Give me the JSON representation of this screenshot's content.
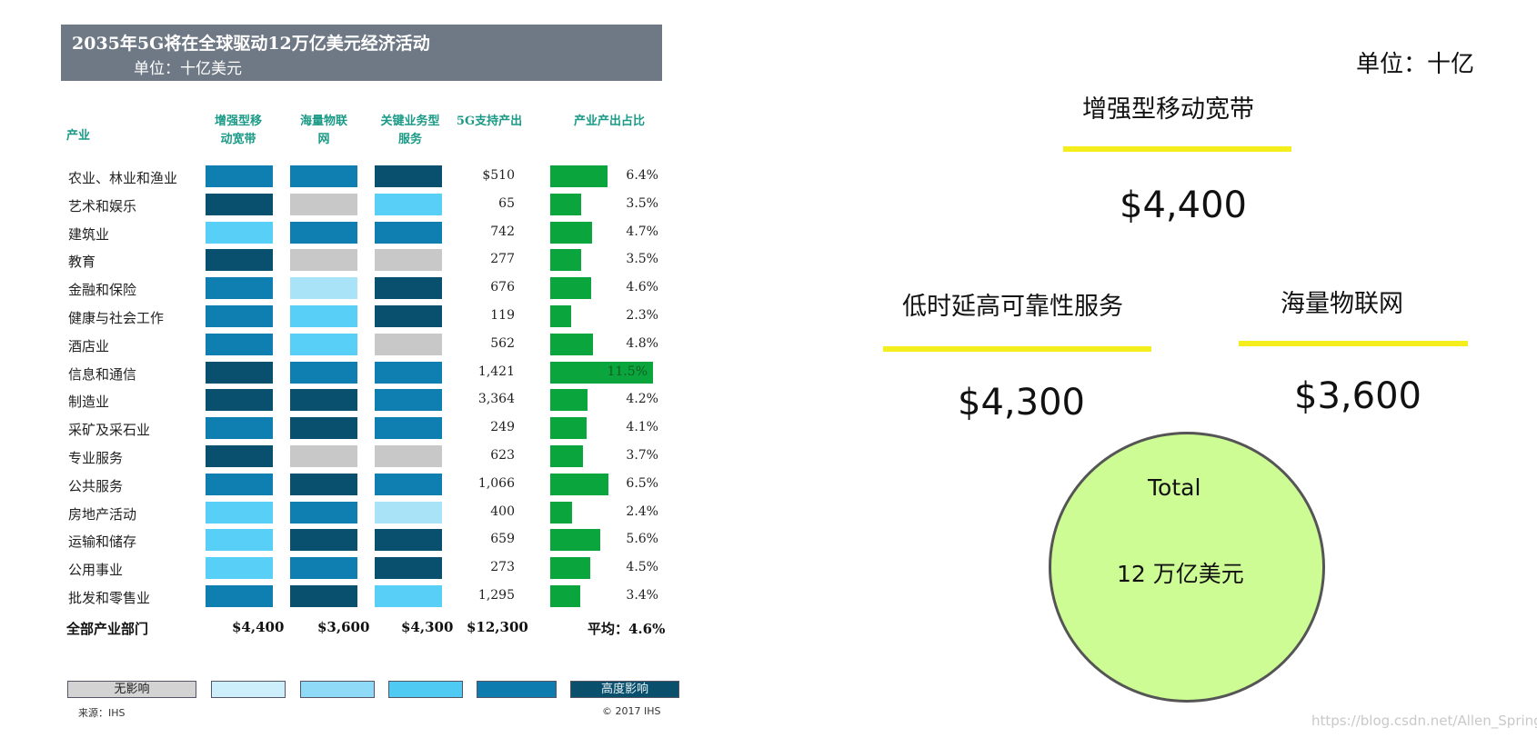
{
  "table": {
    "title": "2035年5G将在全球驱动12万亿美元经济活动",
    "unit": "单位：十亿美元",
    "headers": {
      "industry": "产业",
      "embb": [
        "增强型移",
        "动宽带"
      ],
      "iot": [
        "海量物联",
        "网"
      ],
      "critical": [
        "关键业务型",
        "服务"
      ],
      "output": "5G支持产出",
      "share": "产业产出占比"
    },
    "total_label": "全部产业部门",
    "total_embb": "$4,400",
    "total_iot": "$3,600",
    "total_critical": "$4,300",
    "total_output": "$12,300",
    "total_share": "平均：4.6%",
    "legend": [
      "无影响",
      "",
      "",
      "",
      "",
      "高度影响"
    ],
    "source": "来源：IHS",
    "copyright": "© 2017 IHS"
  },
  "chart_data": {
    "type": "table",
    "title": "2035年5G将在全球驱动12万亿美元经济活动",
    "impact_scale_colors": [
      "#c8c8c8",
      "#a8e3f8",
      "#58cff6",
      "#0e7fb0",
      "#09506e"
    ],
    "share_bar_color": "#0aa53c",
    "rows": [
      {
        "industry": "农业、林业和渔业",
        "embb": 3,
        "iot": 3,
        "critical": 4,
        "output": "$510",
        "share": "6.4%",
        "share_value": 6.4
      },
      {
        "industry": "艺术和娱乐",
        "embb": 4,
        "iot": 0,
        "critical": 2,
        "output": "65",
        "share": "3.5%",
        "share_value": 3.5
      },
      {
        "industry": "建筑业",
        "embb": 2,
        "iot": 3,
        "critical": 3,
        "output": "742",
        "share": "4.7%",
        "share_value": 4.7
      },
      {
        "industry": "教育",
        "embb": 4,
        "iot": 0,
        "critical": 0,
        "output": "277",
        "share": "3.5%",
        "share_value": 3.5
      },
      {
        "industry": "金融和保险",
        "embb": 3,
        "iot": 1,
        "critical": 4,
        "output": "676",
        "share": "4.6%",
        "share_value": 4.6
      },
      {
        "industry": "健康与社会工作",
        "embb": 3,
        "iot": 2,
        "critical": 4,
        "output": "119",
        "share": "2.3%",
        "share_value": 2.3
      },
      {
        "industry": "酒店业",
        "embb": 3,
        "iot": 2,
        "critical": 0,
        "output": "562",
        "share": "4.8%",
        "share_value": 4.8
      },
      {
        "industry": "信息和通信",
        "embb": 4,
        "iot": 3,
        "critical": 3,
        "output": "1,421",
        "share": "11.5%",
        "share_value": 11.5
      },
      {
        "industry": "制造业",
        "embb": 4,
        "iot": 4,
        "critical": 3,
        "output": "3,364",
        "share": "4.2%",
        "share_value": 4.2
      },
      {
        "industry": "采矿及采石业",
        "embb": 3,
        "iot": 4,
        "critical": 3,
        "output": "249",
        "share": "4.1%",
        "share_value": 4.1
      },
      {
        "industry": "专业服务",
        "embb": 4,
        "iot": 0,
        "critical": 0,
        "output": "623",
        "share": "3.7%",
        "share_value": 3.7
      },
      {
        "industry": "公共服务",
        "embb": 3,
        "iot": 4,
        "critical": 3,
        "output": "1,066",
        "share": "6.5%",
        "share_value": 6.5
      },
      {
        "industry": "房地产活动",
        "embb": 2,
        "iot": 3,
        "critical": 1,
        "output": "400",
        "share": "2.4%",
        "share_value": 2.4
      },
      {
        "industry": "运输和储存",
        "embb": 2,
        "iot": 4,
        "critical": 4,
        "output": "659",
        "share": "5.6%",
        "share_value": 5.6
      },
      {
        "industry": "公用事业",
        "embb": 2,
        "iot": 3,
        "critical": 4,
        "output": "273",
        "share": "4.5%",
        "share_value": 4.5
      },
      {
        "industry": "批发和零售业",
        "embb": 3,
        "iot": 4,
        "critical": 2,
        "output": "1,295",
        "share": "3.4%",
        "share_value": 3.4
      }
    ]
  },
  "summary": {
    "unit": "单位：十亿",
    "embb_label": "增强型移动宽带",
    "embb_value": "$4,400",
    "critical_label": "低时延高可靠性服务",
    "critical_value": "$4,300",
    "iot_label": "海量物联网",
    "iot_value": "$3,600",
    "total_label": "Total",
    "total_value": "12 万亿美元",
    "accent_color": "#f3ee1c",
    "circle_color": "#cdfb94"
  },
  "watermark": "https://blog.csdn.net/Allen_Spring"
}
